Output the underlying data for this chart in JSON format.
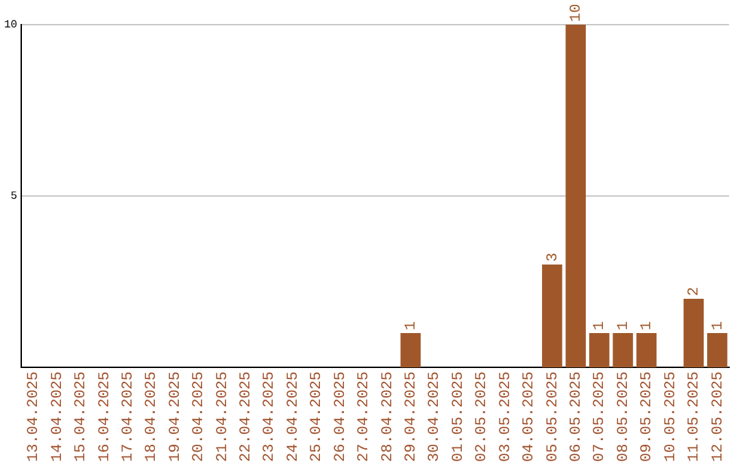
{
  "chart_data": {
    "type": "bar",
    "categories": [
      "13.04.2025",
      "14.04.2025",
      "15.04.2025",
      "16.04.2025",
      "17.04.2025",
      "18.04.2025",
      "19.04.2025",
      "20.04.2025",
      "21.04.2025",
      "22.04.2025",
      "23.04.2025",
      "24.04.2025",
      "25.04.2025",
      "26.04.2025",
      "27.04.2025",
      "28.04.2025",
      "29.04.2025",
      "30.04.2025",
      "01.05.2025",
      "02.05.2025",
      "03.05.2025",
      "04.05.2025",
      "05.05.2025",
      "06.05.2025",
      "07.05.2025",
      "08.05.2025",
      "09.05.2025",
      "10.05.2025",
      "11.05.2025",
      "12.05.2025"
    ],
    "values": [
      0,
      0,
      0,
      0,
      0,
      0,
      0,
      0,
      0,
      0,
      0,
      0,
      0,
      0,
      0,
      0,
      1,
      0,
      0,
      0,
      0,
      0,
      3,
      10,
      1,
      1,
      1,
      0,
      2,
      1
    ],
    "value_labels": [
      null,
      null,
      null,
      null,
      null,
      null,
      null,
      null,
      null,
      null,
      null,
      null,
      null,
      null,
      null,
      null,
      "1",
      null,
      null,
      null,
      null,
      null,
      "3",
      "10",
      "1",
      "1",
      "1",
      null,
      "2",
      "1"
    ],
    "color": "#a0582a",
    "ylim": [
      0,
      10
    ],
    "yticks": [
      5,
      10
    ],
    "grid": "y",
    "legend": false
  }
}
